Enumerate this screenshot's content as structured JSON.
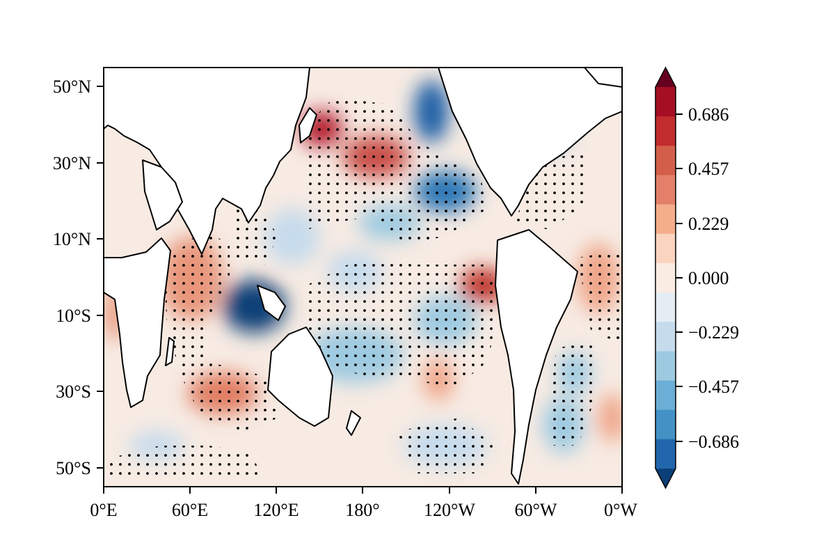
{
  "map": {
    "type": "filled-contour-map",
    "projection": "PlateCarree",
    "lon_range": [
      0,
      360
    ],
    "lat_range": [
      -55,
      55
    ],
    "stippling": "significance dots",
    "x_ticks": [
      {
        "lon": 0,
        "label": "0°E"
      },
      {
        "lon": 60,
        "label": "60°E"
      },
      {
        "lon": 120,
        "label": "120°E"
      },
      {
        "lon": 180,
        "label": "180°"
      },
      {
        "lon": 240,
        "label": "120°W"
      },
      {
        "lon": 300,
        "label": "60°W"
      },
      {
        "lon": 360,
        "label": "0°W"
      }
    ],
    "y_ticks": [
      {
        "lat": 50,
        "label": "50°N"
      },
      {
        "lat": 30,
        "label": "30°N"
      },
      {
        "lat": 10,
        "label": "10°N"
      },
      {
        "lat": -10,
        "label": "10°S"
      },
      {
        "lat": -30,
        "label": "30°S"
      },
      {
        "lat": -50,
        "label": "50°S"
      }
    ],
    "anomalies": [
      {
        "lon": 150,
        "lat": 38,
        "value": 0.75
      },
      {
        "lon": 188,
        "lat": 30,
        "value": 0.6
      },
      {
        "lon": 250,
        "lat": 3,
        "value": 0.75
      },
      {
        "lon": 78,
        "lat": -32,
        "value": 0.4
      },
      {
        "lon": 100,
        "lat": -8,
        "value": -0.85
      },
      {
        "lon": 225,
        "lat": 45,
        "value": -0.75
      },
      {
        "lon": 235,
        "lat": 25,
        "value": -0.55
      }
    ]
  },
  "colorbar": {
    "ticks": [
      {
        "value": 0.686,
        "label": "0.686"
      },
      {
        "value": 0.457,
        "label": "0.457"
      },
      {
        "value": 0.229,
        "label": "0.229"
      },
      {
        "value": 0.0,
        "label": "0.000"
      },
      {
        "value": -0.229,
        "label": "−0.229"
      },
      {
        "value": -0.457,
        "label": "−0.457"
      },
      {
        "value": -0.686,
        "label": "−0.686"
      }
    ],
    "colors": [
      "#67001f",
      "#a50f24",
      "#c12c2f",
      "#d35f4b",
      "#e4806a",
      "#f4ae8a",
      "#fbd4c0",
      "#fbece3",
      "#e4edf3",
      "#c6dbec",
      "#9ecae1",
      "#6baed6",
      "#4292c6",
      "#2166ac",
      "#0b3f77"
    ],
    "extend": "both"
  }
}
